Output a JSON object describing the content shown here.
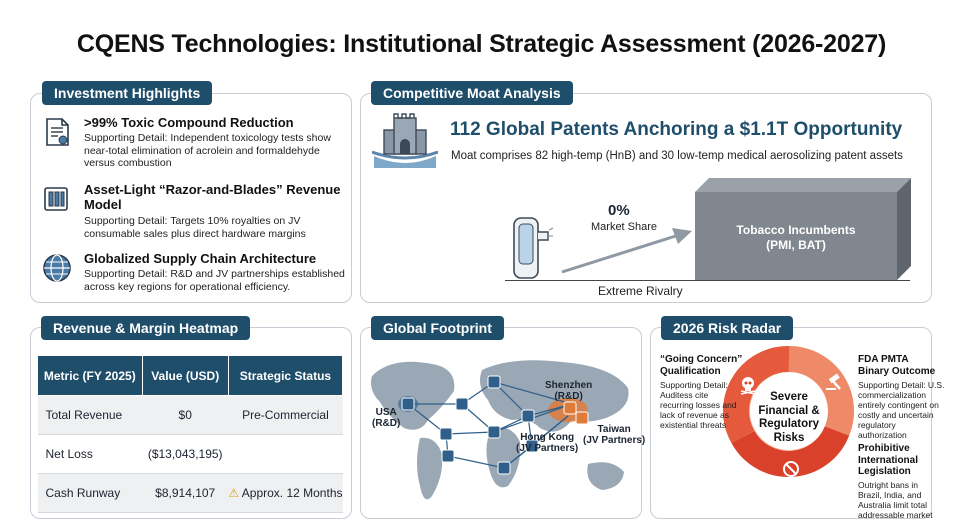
{
  "title": "CQENS Technologies: Institutional Strategic Assessment (2026-2027)",
  "highlights": {
    "tag": "Investment Highlights",
    "items": [
      {
        "title": ">99% Toxic Compound Reduction",
        "detail": "Supporting Detail: Independent toxicology tests show near-total elimination of acrolein and formaldehyde versus combustion",
        "icon": "document-certificate-icon"
      },
      {
        "title": "Asset-Light “Razor-and-Blades” Revenue Model",
        "detail": "Supporting Detail: Targets 10% royalties on JV consumable sales plus direct hardware margins",
        "icon": "razor-icon"
      },
      {
        "title": "Globalized Supply Chain Architecture",
        "detail": "Supporting Detail: R&D and JV partnerships established across key regions for operational efficiency.",
        "icon": "globe-icon"
      }
    ]
  },
  "moat": {
    "tag": "Competitive Moat Analysis",
    "headline": "112 Global Patents Anchoring a $1.1T Opportunity",
    "sub": "Moat comprises 82 high-temp (HnB) and 30 low-temp medical aerosolizing patent assets",
    "share_value": "0%",
    "share_label": "Market Share",
    "incumbents_line1": "Tobacco Incumbents",
    "incumbents_line2": "(PMI, BAT)",
    "rivalry": "Extreme Rivalry"
  },
  "heatmap": {
    "tag": "Revenue & Margin Heatmap",
    "columns": [
      "Metric (FY 2025)",
      "Value (USD)",
      "Strategic Status"
    ],
    "rows": [
      {
        "metric": "Total Revenue",
        "value": "$0",
        "status": "Pre-Commercial"
      },
      {
        "metric": "Net Loss",
        "value": "($13,043,195)",
        "status": ""
      },
      {
        "metric": "Cash Runway",
        "value": "$8,914,107",
        "status": "Approx. 12 Months"
      }
    ]
  },
  "footprint": {
    "tag": "Global Footprint",
    "usa": "USA",
    "usa2": "(R&D)",
    "shenzhen": "Shenzhen",
    "shenzhen2": "(R&D)",
    "hk": "Hong Kong",
    "hk2": "(JV Partners)",
    "taiwan": "Taiwan",
    "taiwan2": "(JV Partners)"
  },
  "risk": {
    "tag": "2026 Risk Radar",
    "center1": "Severe",
    "center2": "Financial &",
    "center3": "Regulatory",
    "center4": "Risks",
    "gc_title1": "“Going Concern”",
    "gc_title2": "Qualification",
    "gc_body": [
      "Supporting Detail:",
      "Auditess cite",
      "recurring losses and",
      "lack of revenue as",
      "existential threats"
    ],
    "fda_title1": "FDA PMTA",
    "fda_title2": "Binary Outcome",
    "fda_body": [
      "Supporting Detail: U.S.",
      "commercialization",
      "entirely contingent on",
      "costly and uncertain",
      "regulatory",
      "authorization"
    ],
    "leg_title1": "Prohibitive",
    "leg_title2": "International",
    "leg_title3": "Legislation",
    "leg_body": [
      "Outright bans in",
      "Brazil, India, and",
      "Australia limit total",
      "addressable market"
    ],
    "colors": {
      "ring": "#d9412b",
      "ring_light": "#ee8a68",
      "ring_pale": "#f6c1ab"
    }
  }
}
